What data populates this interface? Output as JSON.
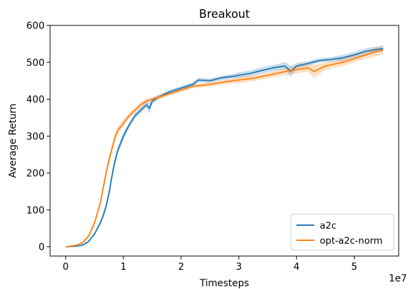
{
  "chart_data": {
    "type": "line",
    "title": "Breakout",
    "xlabel": "Timesteps",
    "ylabel": "Average Return",
    "x_scale_label": "1e7",
    "xlim": [
      -0.27,
      5.77
    ],
    "ylim": [
      -25,
      600
    ],
    "x_ticks": [
      0,
      1,
      2,
      3,
      4,
      5
    ],
    "x_tick_labels": [
      "0",
      "1",
      "2",
      "3",
      "4",
      "5"
    ],
    "y_ticks": [
      0,
      100,
      200,
      300,
      400,
      500,
      600
    ],
    "y_tick_labels": [
      "0",
      "100",
      "200",
      "300",
      "400",
      "500",
      "600"
    ],
    "grid": false,
    "legend_position": "bottom-right",
    "series": [
      {
        "name": "a2c",
        "color": "#1f77b4",
        "x": [
          0,
          0.2,
          0.3,
          0.4,
          0.5,
          0.6,
          0.65,
          0.7,
          0.75,
          0.8,
          0.85,
          0.9,
          0.95,
          1.0,
          1.1,
          1.2,
          1.3,
          1.4,
          1.45,
          1.5,
          1.6,
          1.8,
          2.0,
          2.2,
          2.3,
          2.5,
          2.7,
          2.9,
          3.0,
          3.2,
          3.4,
          3.6,
          3.8,
          3.9,
          4.0,
          4.2,
          4.4,
          4.6,
          4.8,
          5.0,
          5.2,
          5.4,
          5.5
        ],
        "y": [
          0,
          2,
          5,
          15,
          35,
          65,
          85,
          110,
          145,
          190,
          230,
          260,
          280,
          300,
          330,
          355,
          370,
          385,
          375,
          395,
          405,
          420,
          430,
          440,
          452,
          450,
          458,
          462,
          465,
          470,
          478,
          485,
          490,
          475,
          490,
          497,
          505,
          508,
          512,
          520,
          530,
          535,
          537
        ],
        "band": [
          0,
          1,
          2,
          3,
          4,
          6,
          8,
          10,
          12,
          12,
          12,
          10,
          10,
          10,
          8,
          8,
          8,
          8,
          15,
          8,
          6,
          6,
          6,
          6,
          6,
          6,
          6,
          6,
          8,
          8,
          8,
          8,
          10,
          15,
          8,
          6,
          6,
          6,
          8,
          8,
          8,
          8,
          8
        ]
      },
      {
        "name": "opt-a2c-norm",
        "color": "#ff7f0e",
        "x": [
          0,
          0.1,
          0.2,
          0.3,
          0.4,
          0.5,
          0.6,
          0.65,
          0.7,
          0.75,
          0.8,
          0.85,
          0.9,
          1.0,
          1.1,
          1.2,
          1.3,
          1.4,
          1.5,
          1.6,
          1.8,
          2.0,
          2.2,
          2.5,
          2.8,
          3.0,
          3.3,
          3.6,
          3.8,
          4.0,
          4.2,
          4.3,
          4.5,
          4.8,
          5.0,
          5.2,
          5.4,
          5.5
        ],
        "y": [
          0,
          2,
          5,
          12,
          30,
          65,
          120,
          160,
          200,
          235,
          265,
          295,
          315,
          335,
          355,
          370,
          385,
          395,
          400,
          405,
          415,
          425,
          435,
          440,
          448,
          452,
          458,
          468,
          475,
          480,
          485,
          475,
          490,
          500,
          510,
          520,
          530,
          533
        ],
        "band": [
          0,
          1,
          2,
          3,
          4,
          6,
          10,
          12,
          12,
          12,
          12,
          12,
          10,
          10,
          8,
          8,
          8,
          8,
          6,
          6,
          6,
          6,
          6,
          6,
          6,
          8,
          8,
          8,
          10,
          10,
          10,
          18,
          10,
          10,
          10,
          10,
          12,
          12
        ]
      }
    ]
  }
}
